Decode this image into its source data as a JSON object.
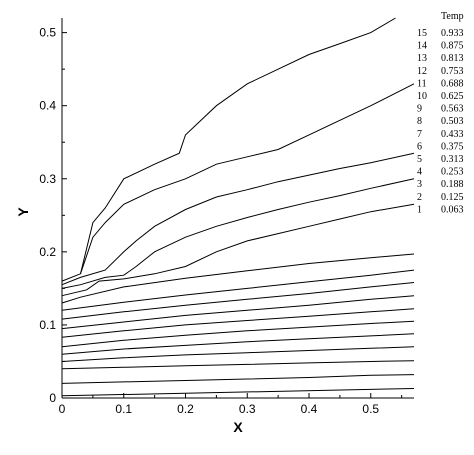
{
  "chart_data": {
    "type": "line",
    "subtype": "contour",
    "title": "",
    "xlabel": "X",
    "ylabel": "Y",
    "xlim": [
      0,
      0.57
    ],
    "ylim": [
      0,
      0.52
    ],
    "xticks": [
      0,
      0.1,
      0.2,
      0.3,
      0.4,
      0.5
    ],
    "yticks": [
      0,
      0.1,
      0.2,
      0.3,
      0.4,
      0.5
    ],
    "xtick_labels": [
      "0",
      "0.1",
      "0.2",
      "0.3",
      "0.4",
      "0.5"
    ],
    "ytick_labels": [
      "0",
      "0.1",
      "0.2",
      "0.3",
      "0.4",
      "0.5"
    ],
    "grid": false,
    "legend": {
      "placement": "right",
      "title": "Temp",
      "entries": [
        {
          "level": "15",
          "value": "0.933"
        },
        {
          "level": "14",
          "value": "0.875"
        },
        {
          "level": "13",
          "value": "0.813"
        },
        {
          "level": "12",
          "value": "0.753"
        },
        {
          "level": "11",
          "value": "0.688"
        },
        {
          "level": "10",
          "value": "0.625"
        },
        {
          "level": "9",
          "value": "0.563"
        },
        {
          "level": "8",
          "value": "0.503"
        },
        {
          "level": "7",
          "value": "0.433"
        },
        {
          "level": "6",
          "value": "0.375"
        },
        {
          "level": "5",
          "value": "0.313"
        },
        {
          "level": "4",
          "value": "0.253"
        },
        {
          "level": "3",
          "value": "0.188"
        },
        {
          "level": "2",
          "value": "0.125"
        },
        {
          "level": "1",
          "value": "0.063"
        }
      ]
    },
    "series": [
      {
        "x": [
          0,
          0.57
        ],
        "y": [
          0.003,
          0.013
        ]
      },
      {
        "x": [
          0,
          0.1,
          0.2,
          0.3,
          0.4,
          0.5,
          0.57
        ],
        "y": [
          0.02,
          0.022,
          0.024,
          0.026,
          0.028,
          0.031,
          0.032
        ]
      },
      {
        "x": [
          0,
          0.1,
          0.2,
          0.3,
          0.4,
          0.5,
          0.57
        ],
        "y": [
          0.04,
          0.042,
          0.044,
          0.046,
          0.048,
          0.05,
          0.051
        ]
      },
      {
        "x": [
          0,
          0.1,
          0.2,
          0.3,
          0.4,
          0.5,
          0.57
        ],
        "y": [
          0.05,
          0.055,
          0.059,
          0.062,
          0.065,
          0.068,
          0.07
        ]
      },
      {
        "x": [
          0,
          0.1,
          0.2,
          0.3,
          0.4,
          0.5,
          0.57
        ],
        "y": [
          0.06,
          0.067,
          0.072,
          0.077,
          0.081,
          0.085,
          0.088
        ]
      },
      {
        "x": [
          0,
          0.1,
          0.2,
          0.3,
          0.4,
          0.5,
          0.57
        ],
        "y": [
          0.07,
          0.079,
          0.086,
          0.092,
          0.097,
          0.102,
          0.105
        ]
      },
      {
        "x": [
          0,
          0.1,
          0.2,
          0.3,
          0.4,
          0.5,
          0.57
        ],
        "y": [
          0.083,
          0.092,
          0.1,
          0.106,
          0.112,
          0.118,
          0.122
        ]
      },
      {
        "x": [
          0,
          0.1,
          0.2,
          0.3,
          0.4,
          0.5,
          0.57
        ],
        "y": [
          0.095,
          0.104,
          0.113,
          0.12,
          0.127,
          0.135,
          0.14
        ]
      },
      {
        "x": [
          0,
          0.1,
          0.2,
          0.3,
          0.4,
          0.5,
          0.57
        ],
        "y": [
          0.108,
          0.118,
          0.127,
          0.135,
          0.143,
          0.152,
          0.158
        ]
      },
      {
        "x": [
          0,
          0.1,
          0.2,
          0.3,
          0.4,
          0.5,
          0.57
        ],
        "y": [
          0.12,
          0.131,
          0.141,
          0.15,
          0.159,
          0.168,
          0.175
        ]
      },
      {
        "x": [
          0,
          0.03,
          0.1,
          0.2,
          0.3,
          0.4,
          0.5,
          0.57
        ],
        "y": [
          0.13,
          0.138,
          0.152,
          0.164,
          0.174,
          0.184,
          0.192,
          0.197
        ]
      },
      {
        "x": [
          0,
          0.04,
          0.06,
          0.1,
          0.15,
          0.2,
          0.25,
          0.3,
          0.35,
          0.4,
          0.45,
          0.5,
          0.57
        ],
        "y": [
          0.14,
          0.148,
          0.16,
          0.163,
          0.17,
          0.18,
          0.2,
          0.215,
          0.225,
          0.235,
          0.245,
          0.255,
          0.265
        ]
      },
      {
        "x": [
          0,
          0.03,
          0.07,
          0.1,
          0.12,
          0.15,
          0.2,
          0.25,
          0.3,
          0.35,
          0.4,
          0.45,
          0.5,
          0.57
        ],
        "y": [
          0.15,
          0.155,
          0.165,
          0.168,
          0.18,
          0.2,
          0.22,
          0.235,
          0.247,
          0.258,
          0.268,
          0.277,
          0.287,
          0.3
        ]
      },
      {
        "x": [
          0,
          0.03,
          0.07,
          0.1,
          0.12,
          0.15,
          0.2,
          0.25,
          0.3,
          0.35,
          0.4,
          0.45,
          0.5,
          0.57
        ],
        "y": [
          0.155,
          0.165,
          0.175,
          0.2,
          0.215,
          0.235,
          0.258,
          0.275,
          0.285,
          0.296,
          0.305,
          0.314,
          0.322,
          0.335
        ]
      },
      {
        "x": [
          0,
          0.03,
          0.05,
          0.07,
          0.1,
          0.15,
          0.2,
          0.25,
          0.3,
          0.35,
          0.4,
          0.45,
          0.5,
          0.57
        ],
        "y": [
          0.16,
          0.17,
          0.22,
          0.24,
          0.265,
          0.285,
          0.3,
          0.32,
          0.33,
          0.34,
          0.36,
          0.38,
          0.4,
          0.43
        ]
      },
      {
        "x": [
          0.03,
          0.05,
          0.07,
          0.1,
          0.15,
          0.19,
          0.2,
          0.25,
          0.3,
          0.35,
          0.4,
          0.45,
          0.5,
          0.54
        ],
        "y": [
          0.17,
          0.24,
          0.26,
          0.3,
          0.32,
          0.335,
          0.36,
          0.4,
          0.43,
          0.45,
          0.47,
          0.485,
          0.5,
          0.52
        ]
      }
    ]
  }
}
